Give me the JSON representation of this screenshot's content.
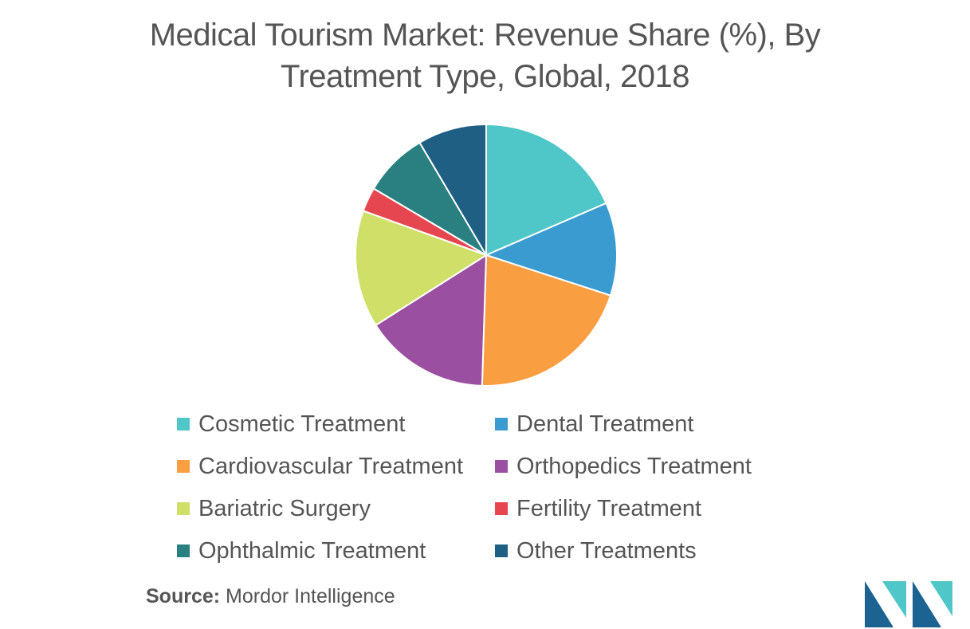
{
  "title_line1": "Medical Tourism Market: Revenue Share (%), By",
  "title_line2": "Treatment Type, Global, 2018",
  "source_label": "Source:",
  "source_value": "Mordor Intelligence",
  "chart_data": {
    "type": "pie",
    "title": "Medical Tourism Market: Revenue Share (%), By Treatment Type, Global, 2018",
    "categories": [
      "Cosmetic Treatment",
      "Dental Treatment",
      "Cardiovascular Treatment",
      "Orthopedics Treatment",
      "Bariatric Surgery",
      "Fertility Treatment",
      "Ophthalmic Treatment",
      "Other Treatments"
    ],
    "values": [
      18.5,
      11.5,
      20.5,
      15.5,
      14.5,
      3.0,
      8.0,
      8.5
    ],
    "colors": [
      "#4fc7c8",
      "#3a9bd0",
      "#fa9e42",
      "#9b4fa0",
      "#cfdf68",
      "#e64650",
      "#2a8080",
      "#1f5f84"
    ],
    "legend_position": "bottom"
  },
  "logo_colors": [
    "#1d6391",
    "#4fc7c8"
  ]
}
